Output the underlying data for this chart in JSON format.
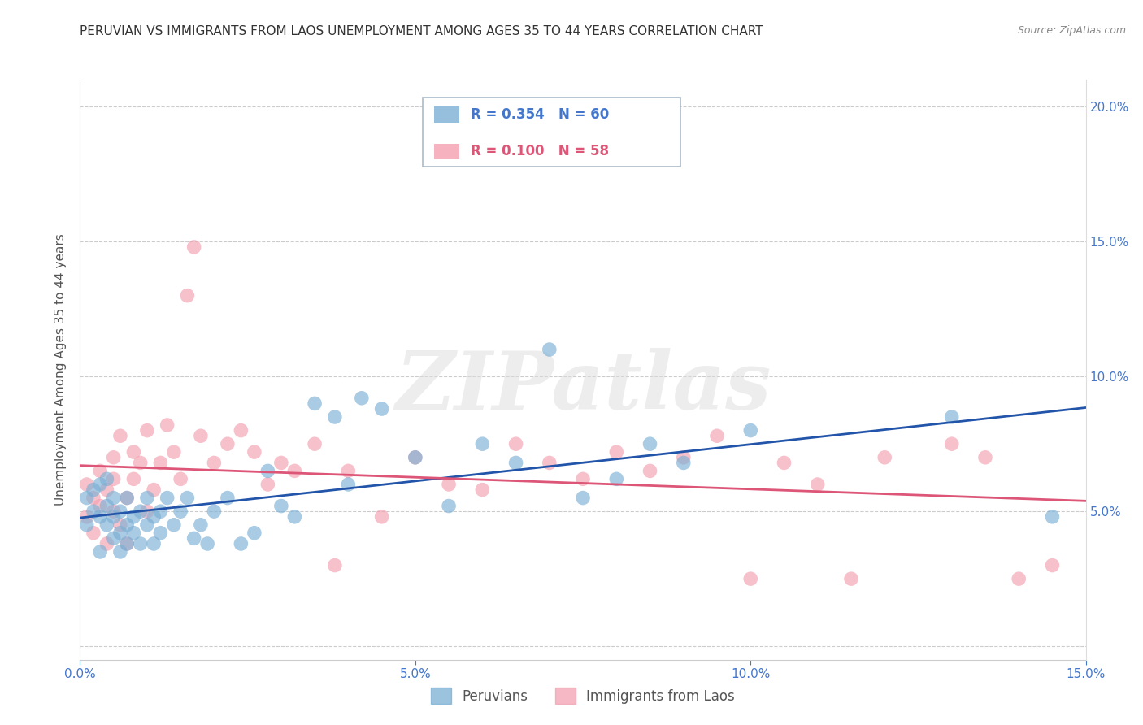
{
  "title": "PERUVIAN VS IMMIGRANTS FROM LAOS UNEMPLOYMENT AMONG AGES 35 TO 44 YEARS CORRELATION CHART",
  "source": "Source: ZipAtlas.com",
  "ylabel": "Unemployment Among Ages 35 to 44 years",
  "xlim": [
    0.0,
    0.15
  ],
  "ylim": [
    -0.005,
    0.21
  ],
  "yticks": [
    0.0,
    0.05,
    0.1,
    0.15,
    0.2
  ],
  "ytick_labels": [
    "",
    "5.0%",
    "10.0%",
    "15.0%",
    "20.0%"
  ],
  "xticks": [
    0.0,
    0.05,
    0.1,
    0.15
  ],
  "xtick_labels": [
    "0.0%",
    "5.0%",
    "10.0%",
    "15.0%"
  ],
  "legend_label1": "Peruvians",
  "legend_label2": "Immigrants from Laos",
  "blue_color": "#7BAFD4",
  "pink_color": "#F4A0B0",
  "trend_blue": "#2255AA",
  "trend_pink": "#DD5577",
  "tick_color": "#4477CC",
  "watermark": "ZIPatlas",
  "background": "#FFFFFF",
  "grid_color": "#CCCCCC",
  "blue_x": [
    0.001,
    0.001,
    0.002,
    0.002,
    0.003,
    0.003,
    0.003,
    0.004,
    0.004,
    0.004,
    0.005,
    0.005,
    0.005,
    0.006,
    0.006,
    0.006,
    0.007,
    0.007,
    0.007,
    0.008,
    0.008,
    0.009,
    0.009,
    0.01,
    0.01,
    0.011,
    0.011,
    0.012,
    0.012,
    0.013,
    0.014,
    0.015,
    0.016,
    0.017,
    0.018,
    0.019,
    0.02,
    0.022,
    0.024,
    0.026,
    0.028,
    0.03,
    0.032,
    0.035,
    0.038,
    0.04,
    0.042,
    0.045,
    0.05,
    0.055,
    0.06,
    0.065,
    0.07,
    0.075,
    0.08,
    0.085,
    0.09,
    0.1,
    0.13,
    0.145
  ],
  "blue_y": [
    0.055,
    0.045,
    0.05,
    0.058,
    0.048,
    0.06,
    0.035,
    0.052,
    0.045,
    0.062,
    0.04,
    0.055,
    0.048,
    0.042,
    0.05,
    0.035,
    0.045,
    0.055,
    0.038,
    0.042,
    0.048,
    0.05,
    0.038,
    0.045,
    0.055,
    0.048,
    0.038,
    0.05,
    0.042,
    0.055,
    0.045,
    0.05,
    0.055,
    0.04,
    0.045,
    0.038,
    0.05,
    0.055,
    0.038,
    0.042,
    0.065,
    0.052,
    0.048,
    0.09,
    0.085,
    0.06,
    0.092,
    0.088,
    0.07,
    0.052,
    0.075,
    0.068,
    0.11,
    0.055,
    0.062,
    0.075,
    0.068,
    0.08,
    0.085,
    0.048
  ],
  "pink_x": [
    0.001,
    0.001,
    0.002,
    0.002,
    0.003,
    0.003,
    0.004,
    0.004,
    0.005,
    0.005,
    0.005,
    0.006,
    0.006,
    0.007,
    0.007,
    0.008,
    0.008,
    0.009,
    0.01,
    0.01,
    0.011,
    0.012,
    0.013,
    0.014,
    0.015,
    0.016,
    0.017,
    0.018,
    0.02,
    0.022,
    0.024,
    0.026,
    0.028,
    0.03,
    0.032,
    0.035,
    0.038,
    0.04,
    0.045,
    0.05,
    0.055,
    0.06,
    0.065,
    0.07,
    0.075,
    0.08,
    0.085,
    0.09,
    0.095,
    0.1,
    0.105,
    0.11,
    0.115,
    0.12,
    0.13,
    0.135,
    0.14,
    0.145
  ],
  "pink_y": [
    0.06,
    0.048,
    0.055,
    0.042,
    0.065,
    0.052,
    0.058,
    0.038,
    0.062,
    0.05,
    0.07,
    0.045,
    0.078,
    0.055,
    0.038,
    0.062,
    0.072,
    0.068,
    0.05,
    0.08,
    0.058,
    0.068,
    0.082,
    0.072,
    0.062,
    0.13,
    0.148,
    0.078,
    0.068,
    0.075,
    0.08,
    0.072,
    0.06,
    0.068,
    0.065,
    0.075,
    0.03,
    0.065,
    0.048,
    0.07,
    0.06,
    0.058,
    0.075,
    0.068,
    0.062,
    0.072,
    0.065,
    0.07,
    0.078,
    0.025,
    0.068,
    0.06,
    0.025,
    0.07,
    0.075,
    0.07,
    0.025,
    0.03
  ],
  "title_fontsize": 11,
  "axis_label_fontsize": 11,
  "tick_fontsize": 11,
  "legend_fontsize": 12
}
